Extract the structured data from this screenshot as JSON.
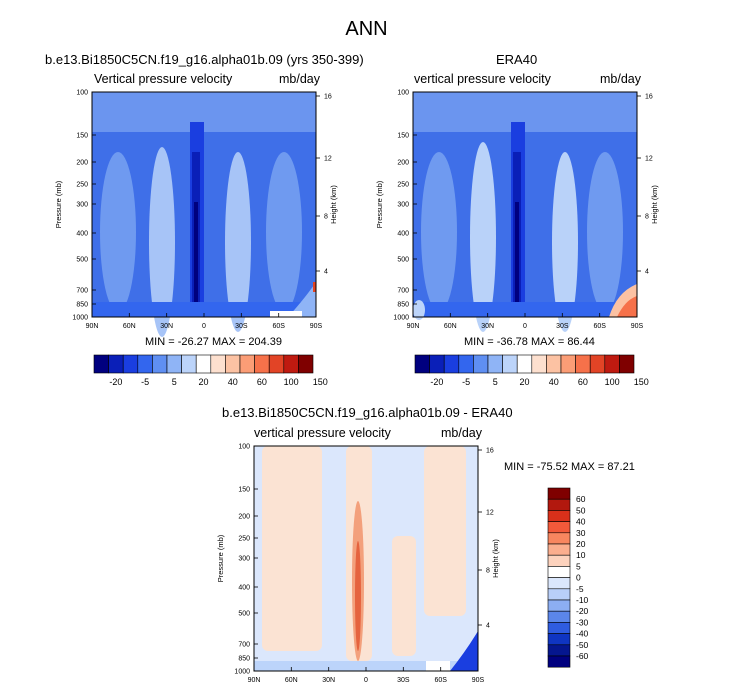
{
  "title": "ANN",
  "colors": {
    "dark_blue": "#00007f",
    "mid_blue": "#1f52e6",
    "light_blue": "#aecbf8",
    "peach": "#fbd2bc",
    "dark_red": "#7f0000"
  },
  "panels": {
    "model": {
      "title": "b.e13.Bi1850C5CN.f19_g16.alpha01b.09 (yrs 350-399)",
      "left_label": "Vertical pressure velocity",
      "right_label": "mb/day",
      "minmax": "MIN = -26.27   MAX = 204.39"
    },
    "obs": {
      "title": "ERA40",
      "left_label": "vertical pressure velocity",
      "right_label": "mb/day",
      "minmax": "MIN = -36.78   MAX =  86.44"
    },
    "diff": {
      "title": "b.e13.Bi1850C5CN.f19_g16.alpha01b.09 - ERA40",
      "left_label": "vertical pressure velocity",
      "right_label": "mb/day",
      "minmax": "MIN = -75.52   MAX =  87.21"
    }
  },
  "chart_data": [
    {
      "type": "heatmap",
      "title": "b.e13.Bi1850C5CN.f19_g16.alpha01b.09 (yrs 350-399)",
      "xlabel": "",
      "ylabel": "Pressure (mb)",
      "ylabel_right": "Height (km)",
      "x_ticks": [
        "90N",
        "60N",
        "30N",
        "0",
        "30S",
        "60S",
        "90S"
      ],
      "y_ticks": [
        "100",
        "150",
        "200",
        "250",
        "300",
        "400",
        "500",
        "700",
        "850",
        "1000"
      ],
      "y_right_ticks": [
        "16",
        "12",
        "8",
        "4"
      ],
      "ylim": [
        1000,
        100
      ],
      "y_scale": "log",
      "colorbar_labels": [
        "-20",
        "-5",
        "5",
        "20",
        "40",
        "60",
        "100",
        "150"
      ],
      "min": -26.27,
      "max": 204.39
    },
    {
      "type": "heatmap",
      "title": "ERA40",
      "xlabel": "",
      "ylabel": "Pressure (mb)",
      "ylabel_right": "Height (km)",
      "x_ticks": [
        "90N",
        "60N",
        "30N",
        "0",
        "30S",
        "60S",
        "90S"
      ],
      "y_ticks": [
        "100",
        "150",
        "200",
        "250",
        "300",
        "400",
        "500",
        "700",
        "850",
        "1000"
      ],
      "y_right_ticks": [
        "16",
        "12",
        "8",
        "4"
      ],
      "ylim": [
        1000,
        100
      ],
      "y_scale": "log",
      "colorbar_labels": [
        "-20",
        "-5",
        "5",
        "20",
        "40",
        "60",
        "100",
        "150"
      ],
      "min": -36.78,
      "max": 86.44
    },
    {
      "type": "heatmap",
      "title": "b.e13.Bi1850C5CN.f19_g16.alpha01b.09 - ERA40",
      "xlabel": "",
      "ylabel": "Pressure (mb)",
      "ylabel_right": "Height (km)",
      "x_ticks": [
        "90N",
        "60N",
        "30N",
        "0",
        "30S",
        "60S",
        "90S"
      ],
      "y_ticks": [
        "100",
        "150",
        "200",
        "250",
        "300",
        "400",
        "500",
        "700",
        "850",
        "1000"
      ],
      "y_right_ticks": [
        "16",
        "12",
        "8",
        "4"
      ],
      "ylim": [
        1000,
        100
      ],
      "y_scale": "log",
      "colorbar_labels": [
        "60",
        "50",
        "40",
        "30",
        "20",
        "10",
        "5",
        "0",
        "-5",
        "-10",
        "-20",
        "-30",
        "-40",
        "-50",
        "-60"
      ],
      "min": -75.52,
      "max": 87.21
    }
  ]
}
